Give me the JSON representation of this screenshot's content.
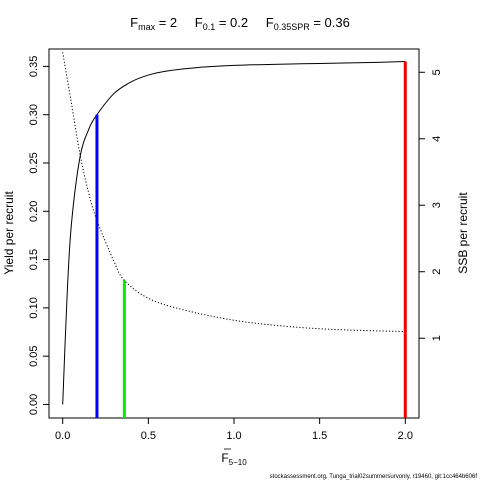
{
  "chart_data": {
    "type": "line",
    "title_parts": {
      "fmax_base": "F",
      "fmax_sub": "max",
      "fmax_val": " = 2",
      "f01_base": "F",
      "f01_sub": "0.1",
      "f01_val": " = 0.2",
      "fspr_base": "F",
      "fspr_sub": "0.35SPR",
      "fspr_val": " = 0.36"
    },
    "xlabel": {
      "base": "F",
      "sub": "5−10"
    },
    "ylabel_left": "Yield per recruit",
    "ylabel_right": "SSB per recruit",
    "xlim": [
      -0.08,
      2.08
    ],
    "ylim_left": [
      -0.014,
      0.368
    ],
    "ylim_right": [
      -0.2,
      5.35
    ],
    "x_ticks": [
      0,
      0.5,
      1,
      1.5,
      2
    ],
    "x_tick_labels": [
      "0.0",
      "0.5",
      "1.0",
      "1.5",
      "2.0"
    ],
    "y_left_ticks": [
      0,
      0.05,
      0.1,
      0.15,
      0.2,
      0.25,
      0.3,
      0.35
    ],
    "y_left_tick_labels": [
      "0.00",
      "0.05",
      "0.10",
      "0.15",
      "0.20",
      "0.25",
      "0.30",
      "0.35"
    ],
    "y_right_ticks": [
      1,
      2,
      3,
      4,
      5
    ],
    "y_right_tick_labels": [
      "1",
      "2",
      "3",
      "4",
      "5"
    ],
    "series": [
      {
        "axis": "left",
        "style": "solid",
        "x": [
          0,
          0.025,
          0.05,
          0.1,
          0.15,
          0.2,
          0.3,
          0.4,
          0.5,
          0.6,
          0.8,
          1.0,
          1.2,
          1.5,
          1.8,
          2.0
        ],
        "y": [
          0,
          0.11,
          0.185,
          0.255,
          0.284,
          0.3,
          0.322,
          0.334,
          0.341,
          0.345,
          0.349,
          0.351,
          0.352,
          0.353,
          0.354,
          0.355
        ]
      },
      {
        "axis": "right",
        "style": "dotted",
        "x": [
          0,
          0.05,
          0.1,
          0.15,
          0.2,
          0.3,
          0.36,
          0.5,
          0.7,
          1.0,
          1.3,
          1.6,
          2.0
        ],
        "y": [
          5.3,
          4.55,
          3.78,
          3.2,
          2.77,
          2.15,
          1.87,
          1.6,
          1.43,
          1.27,
          1.18,
          1.13,
          1.1
        ]
      }
    ],
    "reference_lines": [
      {
        "x": 0.2,
        "y": 0.3,
        "axis": "left",
        "color": "#0000ff"
      },
      {
        "x": 0.36,
        "y": 1.87,
        "axis": "right",
        "color": "#00ee00"
      },
      {
        "x": 2.0,
        "y": 0.355,
        "axis": "left",
        "color": "#ee0000"
      }
    ]
  },
  "footer_text": "stockassessment.org, Tunga_trial02summersurvonly, r19460, git:1cc464b606f"
}
